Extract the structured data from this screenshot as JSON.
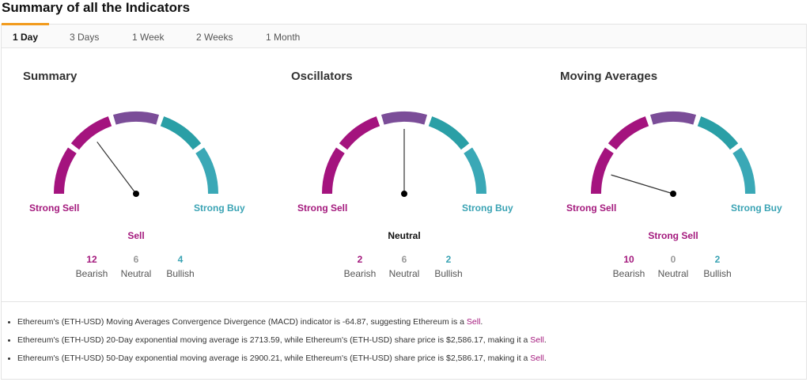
{
  "title": "Summary of all the Indicators",
  "tabs": [
    {
      "label": "1 Day",
      "active": true
    },
    {
      "label": "3 Days"
    },
    {
      "label": "1 Week"
    },
    {
      "label": "2 Weeks"
    },
    {
      "label": "1 Month"
    }
  ],
  "colors": {
    "accent": "#f29b1d",
    "sell": "#a4197d",
    "buy": "#3aa3b4",
    "segments": [
      "#a4137e",
      "#a4137e",
      "#7b4d98",
      "#2a9fa6",
      "#3aa8b6"
    ]
  },
  "gauge_labels": {
    "left": "Strong Sell",
    "right": "Strong Buy"
  },
  "count_labels": {
    "bearish": "Bearish",
    "neutral": "Neutral",
    "bullish": "Bullish"
  },
  "panels": [
    {
      "title": "Summary",
      "verdict": "Sell",
      "verdict_color": "#a4197d",
      "needle_fraction": 0.295,
      "bearish": "12",
      "neutral": "6",
      "bullish": "4"
    },
    {
      "title": "Oscillators",
      "verdict": "Neutral",
      "verdict_color": "#111111",
      "needle_fraction": 0.5,
      "bearish": "2",
      "neutral": "6",
      "bullish": "2"
    },
    {
      "title": "Moving Averages",
      "verdict": "Strong Sell",
      "verdict_color": "#a4197d",
      "needle_fraction": 0.094,
      "bearish": "10",
      "neutral": "0",
      "bullish": "2"
    }
  ],
  "bullets": [
    {
      "text": "Ethereum's (ETH-USD) Moving Averages Convergence Divergence (MACD) indicator is -64.87, suggesting Ethereum is a ",
      "signal": "Sell",
      "end": "."
    },
    {
      "text": "Ethereum's (ETH-USD) 20-Day exponential moving average is 2713.59, while Ethereum's (ETH-USD) share price is $2,586.17, making it a ",
      "signal": "Sell",
      "end": "."
    },
    {
      "text": "Ethereum's (ETH-USD) 50-Day exponential moving average is 2900.21, while Ethereum's (ETH-USD) share price is $2,586.17, making it a ",
      "signal": "Sell",
      "end": "."
    }
  ]
}
